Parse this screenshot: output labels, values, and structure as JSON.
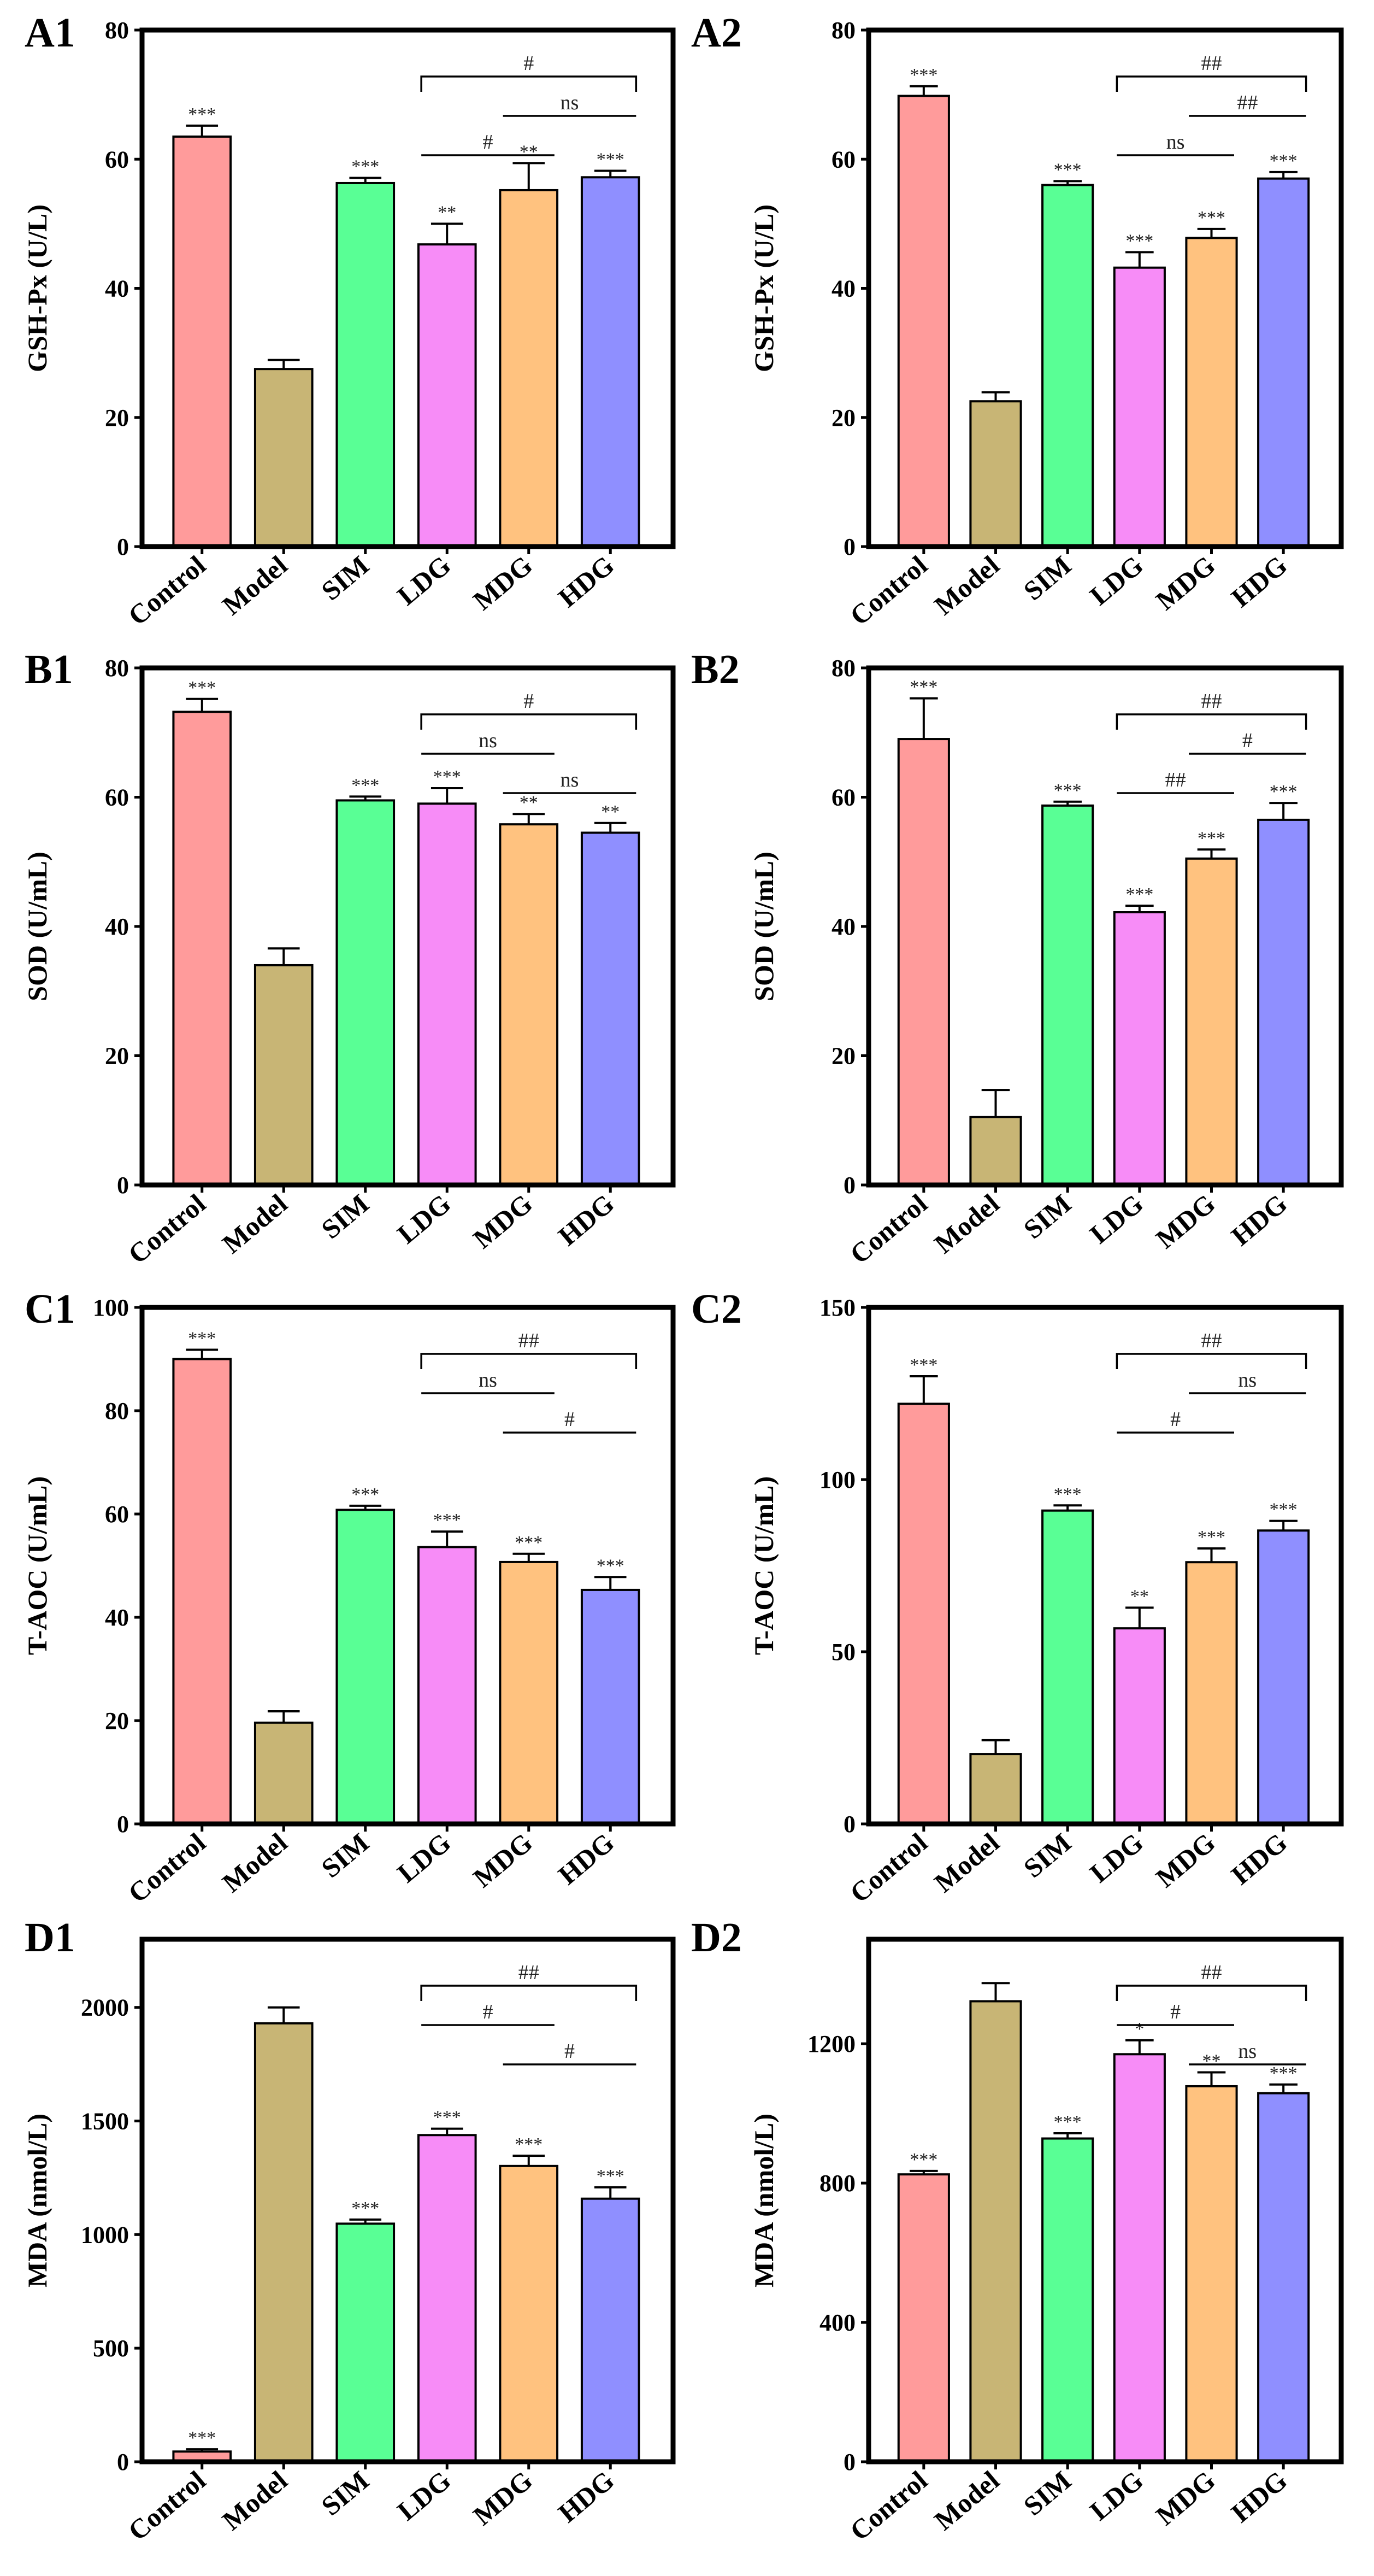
{
  "chart_data": [
    {
      "panel": "A1",
      "type": "bar",
      "ylabel": "GSH-Px (U/L)",
      "ylim": [
        0,
        80
      ],
      "yticks": [
        0,
        20,
        40,
        60,
        80
      ],
      "categories": [
        "Control",
        "Model",
        "SIM",
        "LDG",
        "MDG",
        "HDG"
      ],
      "values": [
        63.5,
        27.5,
        56.3,
        46.8,
        55.2,
        57.2
      ],
      "errors": [
        1.7,
        1.4,
        0.8,
        3.2,
        4.2,
        1.0
      ],
      "significance": [
        "***",
        "",
        "***",
        "**",
        "**",
        "***"
      ],
      "comparisons": [
        {
          "from": 3,
          "to": 5,
          "label": "#",
          "bracket": true,
          "level": 3
        },
        {
          "from": 3,
          "to": 4,
          "label": "#",
          "bracket": false,
          "level": 1
        },
        {
          "from": 4,
          "to": 5,
          "label": "ns",
          "bracket": false,
          "level": 2
        }
      ]
    },
    {
      "panel": "A2",
      "type": "bar",
      "ylabel": "GSH-Px (U/L)",
      "ylim": [
        0,
        80
      ],
      "yticks": [
        0,
        20,
        40,
        60,
        80
      ],
      "categories": [
        "Control",
        "Model",
        "SIM",
        "LDG",
        "MDG",
        "HDG"
      ],
      "values": [
        69.8,
        22.5,
        56.0,
        43.2,
        47.8,
        57.0
      ],
      "errors": [
        1.5,
        1.4,
        0.6,
        2.4,
        1.4,
        1.0
      ],
      "significance": [
        "***",
        "",
        "***",
        "***",
        "***",
        "***"
      ],
      "comparisons": [
        {
          "from": 3,
          "to": 5,
          "label": "##",
          "bracket": true,
          "level": 3
        },
        {
          "from": 4,
          "to": 5,
          "label": "##",
          "bracket": false,
          "level": 2
        },
        {
          "from": 3,
          "to": 4,
          "label": "ns",
          "bracket": false,
          "level": 1
        }
      ]
    },
    {
      "panel": "B1",
      "type": "bar",
      "ylabel": "SOD (U/mL)",
      "ylim": [
        0,
        80
      ],
      "yticks": [
        0,
        20,
        40,
        60,
        80
      ],
      "categories": [
        "Control",
        "Model",
        "SIM",
        "LDG",
        "MDG",
        "HDG"
      ],
      "values": [
        73.2,
        34.0,
        59.5,
        59.0,
        55.8,
        54.5
      ],
      "errors": [
        2.0,
        2.6,
        0.6,
        2.4,
        1.6,
        1.5
      ],
      "significance": [
        "***",
        "",
        "***",
        "***",
        "**",
        "**"
      ],
      "comparisons": [
        {
          "from": 3,
          "to": 5,
          "label": "#",
          "bracket": true,
          "level": 3
        },
        {
          "from": 3,
          "to": 4,
          "label": "ns",
          "bracket": false,
          "level": 2
        },
        {
          "from": 4,
          "to": 5,
          "label": "ns",
          "bracket": false,
          "level": 1
        }
      ]
    },
    {
      "panel": "B2",
      "type": "bar",
      "ylabel": "SOD (U/mL)",
      "ylim": [
        0,
        80
      ],
      "yticks": [
        0,
        20,
        40,
        60,
        80
      ],
      "categories": [
        "Control",
        "Model",
        "SIM",
        "LDG",
        "MDG",
        "HDG"
      ],
      "values": [
        69.0,
        10.5,
        58.7,
        42.2,
        50.5,
        56.5
      ],
      "errors": [
        6.3,
        4.2,
        0.6,
        1.0,
        1.4,
        2.6
      ],
      "significance": [
        "***",
        "",
        "***",
        "***",
        "***",
        "***"
      ],
      "comparisons": [
        {
          "from": 3,
          "to": 5,
          "label": "##",
          "bracket": true,
          "level": 3
        },
        {
          "from": 4,
          "to": 5,
          "label": "#",
          "bracket": false,
          "level": 2
        },
        {
          "from": 3,
          "to": 4,
          "label": "##",
          "bracket": false,
          "level": 1
        }
      ]
    },
    {
      "panel": "C1",
      "type": "bar",
      "ylabel": "T-AOC (U/mL)",
      "ylim": [
        0,
        100
      ],
      "yticks": [
        0,
        20,
        40,
        60,
        80,
        100
      ],
      "categories": [
        "Control",
        "Model",
        "SIM",
        "LDG",
        "MDG",
        "HDG"
      ],
      "values": [
        90.0,
        19.6,
        60.8,
        53.6,
        50.7,
        45.3
      ],
      "errors": [
        1.8,
        2.2,
        0.8,
        3.0,
        1.6,
        2.5
      ],
      "significance": [
        "***",
        "",
        "***",
        "***",
        "***",
        "***"
      ],
      "comparisons": [
        {
          "from": 3,
          "to": 5,
          "label": "##",
          "bracket": true,
          "level": 3
        },
        {
          "from": 3,
          "to": 4,
          "label": "ns",
          "bracket": false,
          "level": 2
        },
        {
          "from": 4,
          "to": 5,
          "label": "#",
          "bracket": false,
          "level": 1
        }
      ]
    },
    {
      "panel": "C2",
      "type": "bar",
      "ylabel": "T-AOC (U/mL)",
      "ylim": [
        0,
        150
      ],
      "yticks": [
        0,
        50,
        100,
        150
      ],
      "categories": [
        "Control",
        "Model",
        "SIM",
        "LDG",
        "MDG",
        "HDG"
      ],
      "values": [
        122.0,
        20.3,
        91.0,
        56.8,
        76.0,
        85.2
      ],
      "errors": [
        8.0,
        4.0,
        1.5,
        6.0,
        4.0,
        2.8
      ],
      "significance": [
        "***",
        "",
        "***",
        "**",
        "***",
        "***"
      ],
      "comparisons": [
        {
          "from": 3,
          "to": 5,
          "label": "##",
          "bracket": true,
          "level": 3
        },
        {
          "from": 4,
          "to": 5,
          "label": "ns",
          "bracket": false,
          "level": 2
        },
        {
          "from": 3,
          "to": 4,
          "label": "#",
          "bracket": false,
          "level": 1
        }
      ]
    },
    {
      "panel": "D1",
      "type": "bar",
      "ylabel": "MDA (nmol/L)",
      "ylim": [
        0,
        2300
      ],
      "yticks": [
        0,
        500,
        1000,
        1500,
        2000
      ],
      "categories": [
        "Control",
        "Model",
        "SIM",
        "LDG",
        "MDG",
        "HDG"
      ],
      "values": [
        45,
        1930,
        1048,
        1438,
        1302,
        1158
      ],
      "errors": [
        10,
        70,
        18,
        28,
        45,
        50
      ],
      "significance": [
        "***",
        "",
        "***",
        "***",
        "***",
        "***"
      ],
      "comparisons": [
        {
          "from": 3,
          "to": 5,
          "label": "##",
          "bracket": true,
          "level": 3
        },
        {
          "from": 3,
          "to": 4,
          "label": "#",
          "bracket": false,
          "level": 2
        },
        {
          "from": 4,
          "to": 5,
          "label": "#",
          "bracket": false,
          "level": 1
        }
      ]
    },
    {
      "panel": "D2",
      "type": "bar",
      "ylabel": "MDA (nmol/L)",
      "ylim": [
        0,
        1500
      ],
      "yticks": [
        0,
        400,
        800,
        1200
      ],
      "categories": [
        "Control",
        "Model",
        "SIM",
        "LDG",
        "MDG",
        "HDG"
      ],
      "values": [
        825,
        1322,
        928,
        1170,
        1078,
        1058
      ],
      "errors": [
        10,
        52,
        15,
        40,
        40,
        25
      ],
      "significance": [
        "***",
        "",
        "***",
        "*",
        "**",
        "***"
      ],
      "comparisons": [
        {
          "from": 3,
          "to": 5,
          "label": "##",
          "bracket": true,
          "level": 3
        },
        {
          "from": 3,
          "to": 4,
          "label": "#",
          "bracket": false,
          "level": 2
        },
        {
          "from": 4,
          "to": 5,
          "label": "ns",
          "bracket": false,
          "level": 1
        }
      ]
    }
  ],
  "colors": {
    "Control": "#ff9b9b",
    "Model": "#c8b575",
    "SIM": "#59ff95",
    "LDG": "#f78cf7",
    "MDG": "#ffc27f",
    "HDG": "#8f8fff",
    "edge": "#000000"
  }
}
